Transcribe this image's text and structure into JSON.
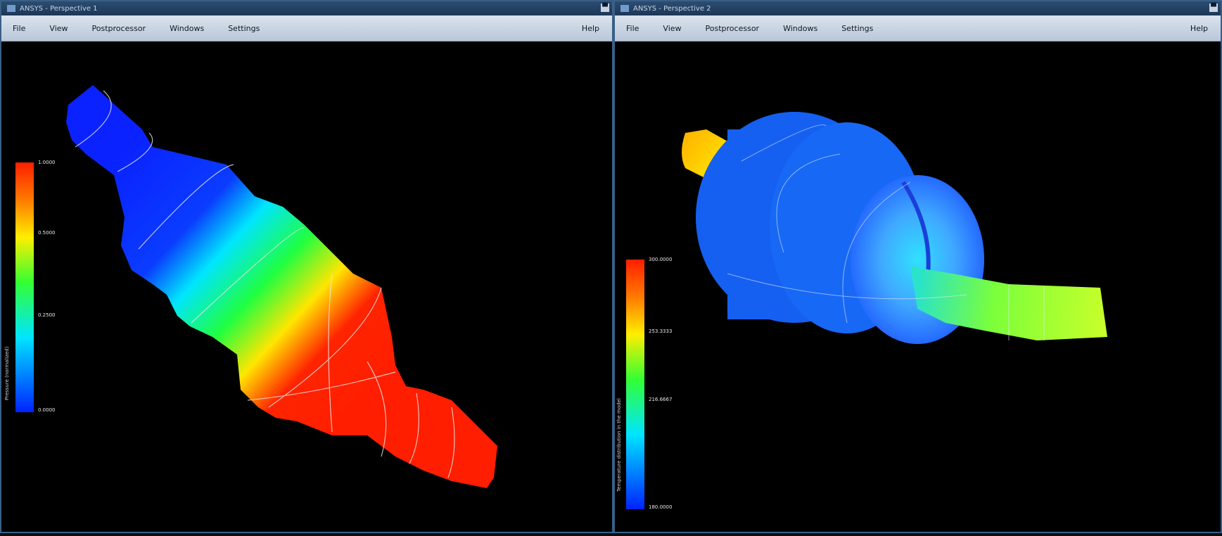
{
  "windows": [
    {
      "title": "ANSYS - Perspective 1",
      "menu": [
        "File",
        "View",
        "Postprocessor",
        "Windows",
        "Settings"
      ],
      "help": "Help",
      "colorbar": {
        "labels": [
          "1.0000",
          "0.5000",
          "0.2500",
          "0.0000"
        ],
        "caption": "Pressure (normalized)",
        "colors": [
          "#ff1e00",
          "#ffee00",
          "#33ff33",
          "#00e5ff",
          "#0022ff"
        ]
      }
    },
    {
      "title": "ANSYS - Perspective 2",
      "menu": [
        "File",
        "View",
        "Postprocessor",
        "Windows",
        "Settings"
      ],
      "help": "Help",
      "colorbar": {
        "labels": [
          "300.0000",
          "253.3333",
          "216.6667",
          "180.0000"
        ],
        "caption": "Temperature distribution in the model",
        "colors": [
          "#ff1e00",
          "#ffee00",
          "#33ff33",
          "#00e5ff",
          "#0022ff"
        ]
      }
    }
  ],
  "close_symbol": "▀"
}
